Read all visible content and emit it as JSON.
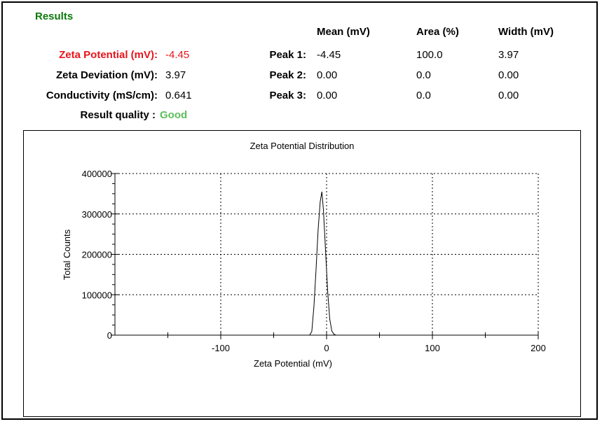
{
  "results": {
    "title": "Results",
    "summary": [
      {
        "label": "Zeta Potential (mV):",
        "value": "-4.45",
        "color": "#e8141b"
      },
      {
        "label": "Zeta Deviation (mV):",
        "value": "3.97",
        "color": "#000000"
      },
      {
        "label": "Conductivity (mS/cm):",
        "value": "0.641",
        "color": "#000000"
      }
    ],
    "quality_label": "Result quality :",
    "quality_value": "Good",
    "quality_color": "#5cc05c",
    "peaks_headers": {
      "mean": "Mean (mV)",
      "area": "Area (%)",
      "width": "Width (mV)"
    },
    "peaks": [
      {
        "label": "Peak 1:",
        "mean": "-4.45",
        "area": "100.0",
        "width": "3.97"
      },
      {
        "label": "Peak 2:",
        "mean": "0.00",
        "area": "0.0",
        "width": "0.00"
      },
      {
        "label": "Peak 3:",
        "mean": "0.00",
        "area": "0.0",
        "width": "0.00"
      }
    ]
  },
  "chart_data": {
    "type": "line",
    "title": "Zeta Potential Distribution",
    "xlabel": "Zeta Potential (mV)",
    "ylabel": "Total Counts",
    "xlim": [
      -200,
      200
    ],
    "ylim": [
      0,
      400000
    ],
    "x_ticks": [
      -100,
      0,
      100,
      200
    ],
    "y_ticks": [
      0,
      100000,
      200000,
      300000,
      400000
    ],
    "grid": true,
    "series": [
      {
        "x": [
          -200,
          -16,
          -14,
          -12,
          -10,
          -8,
          -6,
          -4.45,
          -3,
          -1,
          1,
          3,
          5,
          7,
          9,
          200
        ],
        "y": [
          0,
          0,
          9000,
          70000,
          160000,
          260000,
          330000,
          355000,
          310000,
          210000,
          110000,
          40000,
          10000,
          2000,
          0,
          0
        ]
      }
    ],
    "line_color": "#000000"
  }
}
